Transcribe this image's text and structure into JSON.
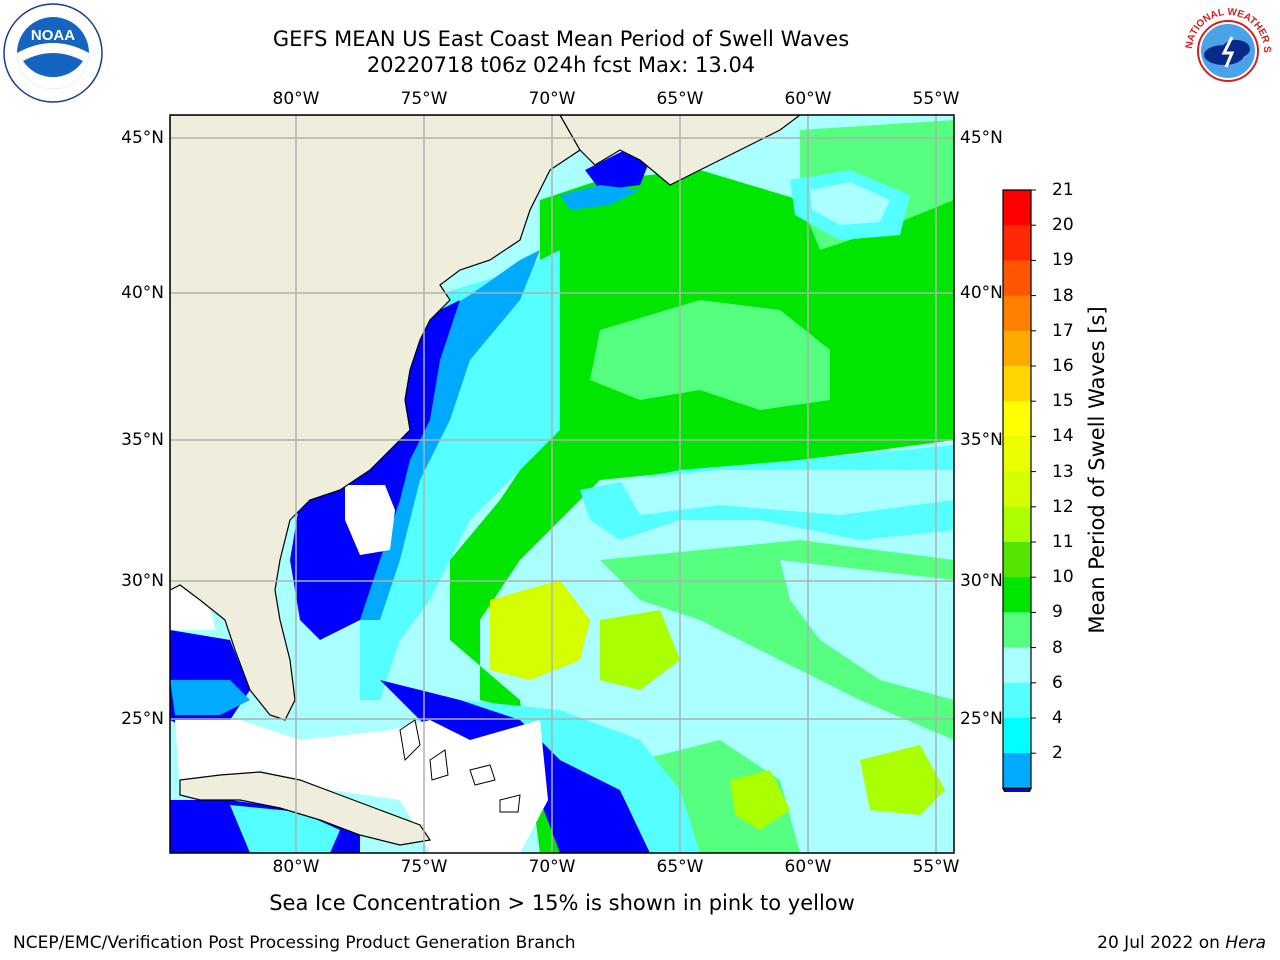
{
  "header": {
    "title_line1": "GEFS MEAN US East Coast Mean Period of Swell Waves",
    "title_line2": "20220718 t06z 024h fcst   Max: 13.04"
  },
  "map": {
    "lon_labels": [
      "80°W",
      "75°W",
      "70°W",
      "65°W",
      "60°W",
      "55°W"
    ],
    "lat_labels": [
      "45°N",
      "40°N",
      "35°N",
      "30°N",
      "25°N"
    ],
    "colors": {
      "land": "#EFEDDC",
      "grid": "#B0B0B0",
      "coast": "#000000"
    }
  },
  "colorbar": {
    "label": "Mean Period of Swell Waves [s]",
    "ticks": [
      "21",
      "20",
      "19",
      "18",
      "17",
      "16",
      "15",
      "14",
      "13",
      "12",
      "11",
      "10",
      "9",
      "8",
      "6",
      "4",
      "2"
    ],
    "colors_top_to_bottom": [
      "#FF0000",
      "#FF2800",
      "#FF5500",
      "#FF7F00",
      "#FFAA00",
      "#FFD400",
      "#FFFF00",
      "#EAFF00",
      "#D4FF00",
      "#AAFF00",
      "#55E600",
      "#00E600",
      "#55FF7F",
      "#AAFFFF",
      "#55FFFF",
      "#00FFFF",
      "#00AAFF",
      "#0000FF"
    ]
  },
  "footer": {
    "note": "Sea Ice Concentration > 15% is shown in pink to yellow",
    "credit": "NCEP/EMC/Verification Post Processing Product Generation Branch",
    "date_text": "20 Jul 2022 on ",
    "host": "Hera"
  },
  "logos": {
    "noaa_text": "NOAA",
    "nws_text": "NATIONAL WEATHER SERVICE"
  }
}
